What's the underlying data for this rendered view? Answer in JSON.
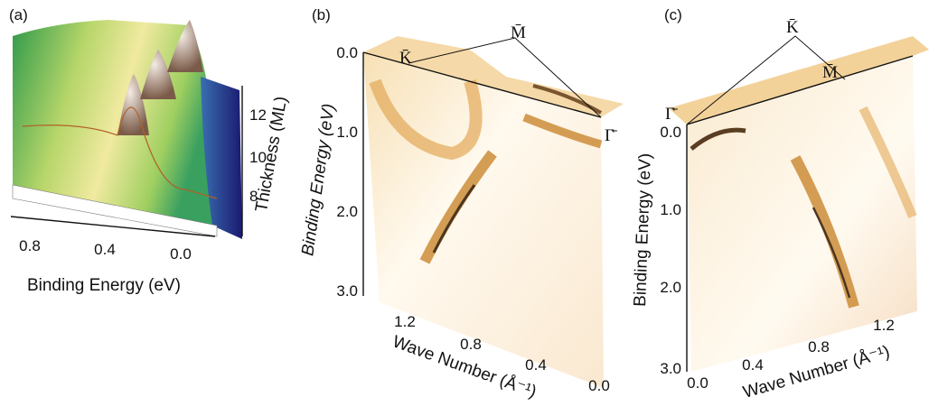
{
  "panels": [
    {
      "label": "(a)",
      "x_axis": {
        "title": "Binding Energy (eV)",
        "ticks": [
          "0.8",
          "0.4",
          "0.0"
        ]
      },
      "y_axis": {
        "title": "Thickness (ML)",
        "ticks": [
          "12",
          "10",
          "8"
        ]
      }
    },
    {
      "label": "(b)",
      "y_axis": {
        "title": "Binding Energy (eV)",
        "ticks": [
          "0.0",
          "1.0",
          "2.0",
          "3.0"
        ]
      },
      "x_axis": {
        "title": "Wave Number (Å⁻¹)",
        "ticks": [
          "1.2",
          "0.8",
          "0.4",
          "0.0"
        ]
      },
      "points": [
        "K̄",
        "M̄",
        "Γ̄"
      ]
    },
    {
      "label": "(c)",
      "y_axis": {
        "title": "Binding Energy (eV)",
        "ticks": [
          "0.0",
          "1.0",
          "2.0",
          "3.0"
        ]
      },
      "x_axis": {
        "title": "Wave Number (Å⁻¹)",
        "ticks": [
          "0.0",
          "0.4",
          "0.8",
          "1.2"
        ]
      },
      "points": [
        "K̄",
        "M̄",
        "Γ̄"
      ]
    }
  ]
}
